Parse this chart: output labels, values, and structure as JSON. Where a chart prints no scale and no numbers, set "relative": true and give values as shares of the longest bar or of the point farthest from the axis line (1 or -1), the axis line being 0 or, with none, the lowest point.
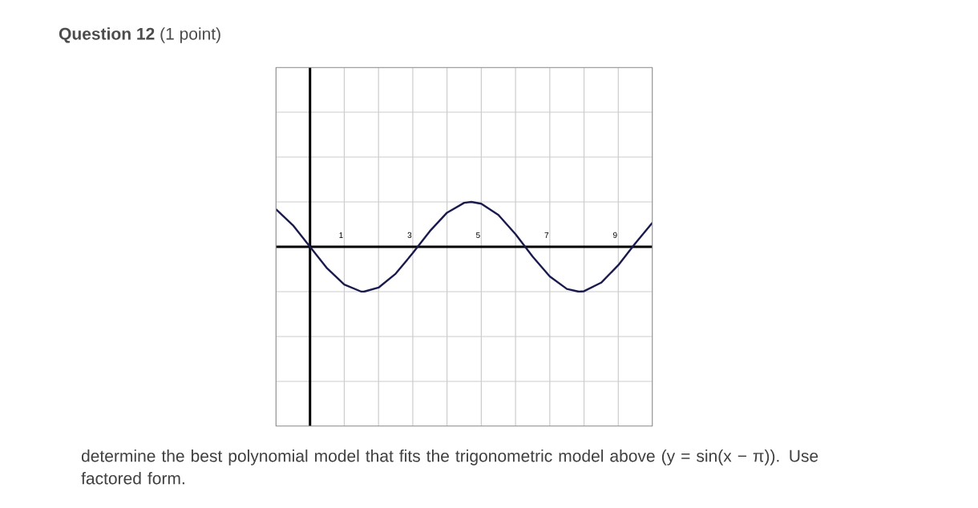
{
  "chart_data": {
    "type": "line",
    "title": "**Question 12** (1 point)",
    "annotations": [
      "determine the best polynomial model that fits the trigonometric model above (y = sin(x − π)). Use factored form."
    ],
    "x": [
      -1,
      -0.5,
      0,
      0.5,
      1,
      1.5,
      1.57,
      2,
      2.5,
      3,
      3.5,
      4,
      4.5,
      4.71,
      5,
      5.5,
      6,
      6.5,
      7,
      7.5,
      7.85,
      8,
      8.5,
      9,
      9.5,
      10
    ],
    "series": [
      {
        "color": "#1a1a4e",
        "values": [
          0.84,
          0.48,
          0,
          -0.48,
          -0.84,
          -1.0,
          -1,
          -0.91,
          -0.6,
          -0.14,
          0.35,
          0.76,
          0.98,
          1,
          0.96,
          0.71,
          0.28,
          -0.22,
          -0.66,
          -0.94,
          -1,
          -0.99,
          -0.8,
          -0.41,
          0.08,
          0.54
        ]
      }
    ],
    "xlim": [
      -1,
      10
    ],
    "xticks": [
      {
        "value": -1,
        "label": null
      },
      {
        "value": 0,
        "label": null
      },
      {
        "value": 1,
        "label": "1"
      },
      {
        "value": 2,
        "label": null
      },
      {
        "value": 3,
        "label": "3"
      },
      {
        "value": 4,
        "label": null
      },
      {
        "value": 5,
        "label": "5"
      },
      {
        "value": 6,
        "label": null
      },
      {
        "value": 7,
        "label": "7"
      },
      {
        "value": 8,
        "label": null
      },
      {
        "value": 9,
        "label": "9"
      },
      {
        "value": 10,
        "label": null
      }
    ],
    "relative": true,
    "grid": true,
    "tick_labels": "x",
    "marker": "none",
    "line_style": "solid"
  }
}
